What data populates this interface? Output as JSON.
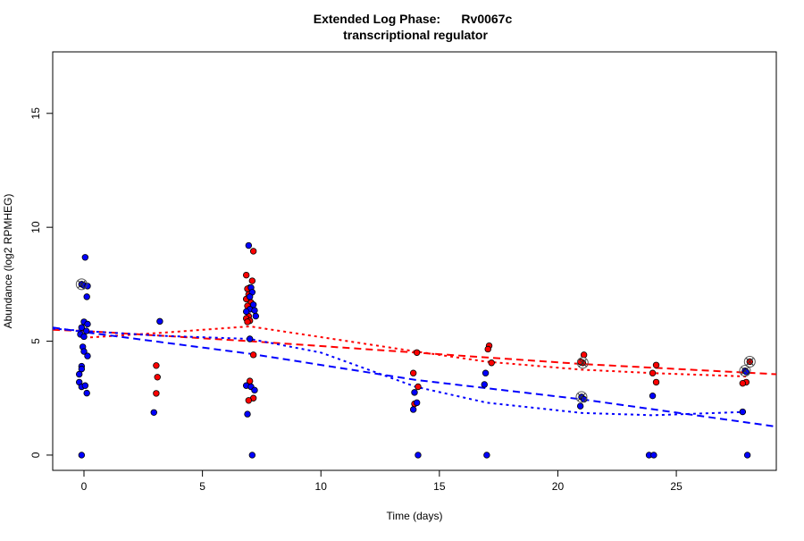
{
  "chart_data": {
    "type": "scatter",
    "title": "Extended Log Phase:      Rv0067c",
    "subtitle": "transcriptional regulator",
    "xlabel": "Time  (days)",
    "ylabel": "Abundance  (log2 RPMHEG)",
    "xlim": [
      -1.32,
      29.22
    ],
    "ylim": [
      -0.67,
      17.7
    ],
    "xticks": [
      0,
      5,
      10,
      15,
      20,
      25
    ],
    "yticks": [
      0,
      5,
      10,
      15
    ],
    "grid": false,
    "colors": {
      "red": "#ff0000",
      "blue": "#0000ff"
    },
    "series": [
      {
        "color": "red",
        "points": [
          [
            3.05,
            3.93
          ],
          [
            3.1,
            3.42
          ],
          [
            3.05,
            2.71
          ],
          [
            7.15,
            8.95
          ],
          [
            6.85,
            7.9
          ],
          [
            7.1,
            7.65
          ],
          [
            7.0,
            7.35
          ],
          [
            6.9,
            7.3
          ],
          [
            6.95,
            7.05
          ],
          [
            6.85,
            6.85
          ],
          [
            7.05,
            6.7
          ],
          [
            6.9,
            6.55
          ],
          [
            7.1,
            6.45
          ],
          [
            6.95,
            6.1
          ],
          [
            6.85,
            6.0
          ],
          [
            7.0,
            5.9
          ],
          [
            6.9,
            5.85
          ],
          [
            7.15,
            4.4
          ],
          [
            7.0,
            3.25
          ],
          [
            7.15,
            2.5
          ],
          [
            6.95,
            2.4
          ],
          [
            14.05,
            4.5
          ],
          [
            13.9,
            3.6
          ],
          [
            14.1,
            3.0
          ],
          [
            13.95,
            2.25
          ],
          [
            17.1,
            4.8
          ],
          [
            17.05,
            4.65
          ],
          [
            17.2,
            4.05
          ],
          [
            21.05,
            4.05
          ],
          [
            21.1,
            4.4
          ],
          [
            20.95,
            4.1
          ],
          [
            24.15,
            3.95
          ],
          [
            24.0,
            3.6
          ],
          [
            24.15,
            3.2
          ],
          [
            28.1,
            4.1
          ],
          [
            27.95,
            3.2
          ],
          [
            27.8,
            3.15
          ]
        ]
      },
      {
        "color": "blue",
        "points": [
          [
            0.05,
            8.68
          ],
          [
            -0.1,
            7.5
          ],
          [
            0.0,
            7.45
          ],
          [
            0.15,
            7.42
          ],
          [
            0.12,
            6.95
          ],
          [
            0.0,
            5.85
          ],
          [
            0.15,
            5.75
          ],
          [
            -0.1,
            5.6
          ],
          [
            0.1,
            5.45
          ],
          [
            -0.15,
            5.3
          ],
          [
            0.0,
            5.2
          ],
          [
            -0.05,
            4.75
          ],
          [
            0.0,
            4.55
          ],
          [
            0.15,
            4.35
          ],
          [
            -0.1,
            3.9
          ],
          [
            -0.1,
            3.78
          ],
          [
            -0.2,
            3.55
          ],
          [
            -0.2,
            3.2
          ],
          [
            -0.1,
            3.0
          ],
          [
            0.05,
            3.05
          ],
          [
            0.12,
            2.72
          ],
          [
            -0.1,
            0
          ],
          [
            3.2,
            5.87
          ],
          [
            2.95,
            1.87
          ],
          [
            6.95,
            9.2
          ],
          [
            7.05,
            7.35
          ],
          [
            7.1,
            7.15
          ],
          [
            7.0,
            6.95
          ],
          [
            7.15,
            6.6
          ],
          [
            7.0,
            6.4
          ],
          [
            7.2,
            6.35
          ],
          [
            6.85,
            6.3
          ],
          [
            7.25,
            6.1
          ],
          [
            7.0,
            5.1
          ],
          [
            6.85,
            3.05
          ],
          [
            7.05,
            3.0
          ],
          [
            7.2,
            2.85
          ],
          [
            6.9,
            1.8
          ],
          [
            7.1,
            0
          ],
          [
            13.95,
            2.75
          ],
          [
            14.05,
            2.3
          ],
          [
            13.9,
            2.0
          ],
          [
            14.1,
            0
          ],
          [
            16.95,
            3.6
          ],
          [
            16.9,
            3.1
          ],
          [
            17.0,
            0
          ],
          [
            21.0,
            2.55
          ],
          [
            21.1,
            2.45
          ],
          [
            20.95,
            2.15
          ],
          [
            24.0,
            2.6
          ],
          [
            23.85,
            0
          ],
          [
            24.05,
            0
          ],
          [
            27.9,
            3.7
          ],
          [
            27.95,
            3.65
          ],
          [
            27.8,
            1.9
          ],
          [
            28.0,
            0
          ]
        ]
      }
    ],
    "highlighted": [
      [
        -0.1,
        7.5
      ],
      [
        21.05,
        4.05
      ],
      [
        21.0,
        2.55
      ],
      [
        28.1,
        4.1
      ],
      [
        27.9,
        3.7
      ]
    ],
    "lines": [
      {
        "color": "red",
        "style": "dashed",
        "points": [
          [
            -1.32,
            5.5
          ],
          [
            0,
            5.45
          ],
          [
            7,
            5.0
          ],
          [
            14,
            4.5
          ],
          [
            21,
            4.0
          ],
          [
            29.22,
            3.55
          ]
        ]
      },
      {
        "color": "red",
        "style": "dotted",
        "points": [
          [
            0,
            5.15
          ],
          [
            3,
            5.35
          ],
          [
            7,
            5.65
          ],
          [
            14,
            4.55
          ],
          [
            17,
            4.1
          ],
          [
            21,
            3.75
          ],
          [
            24,
            3.6
          ],
          [
            28,
            3.45
          ]
        ]
      },
      {
        "color": "blue",
        "style": "dashed",
        "points": [
          [
            -1.32,
            5.6
          ],
          [
            0,
            5.4
          ],
          [
            7,
            4.45
          ],
          [
            14,
            3.3
          ],
          [
            21,
            2.45
          ],
          [
            29.22,
            1.25
          ]
        ]
      },
      {
        "color": "blue",
        "style": "dotted",
        "points": [
          [
            -1.32,
            5.55
          ],
          [
            0,
            5.45
          ],
          [
            3,
            5.25
          ],
          [
            7,
            5.1
          ],
          [
            10,
            4.5
          ],
          [
            14,
            3.0
          ],
          [
            17,
            2.3
          ],
          [
            21,
            1.85
          ],
          [
            24,
            1.75
          ],
          [
            28,
            1.9
          ]
        ]
      }
    ]
  }
}
